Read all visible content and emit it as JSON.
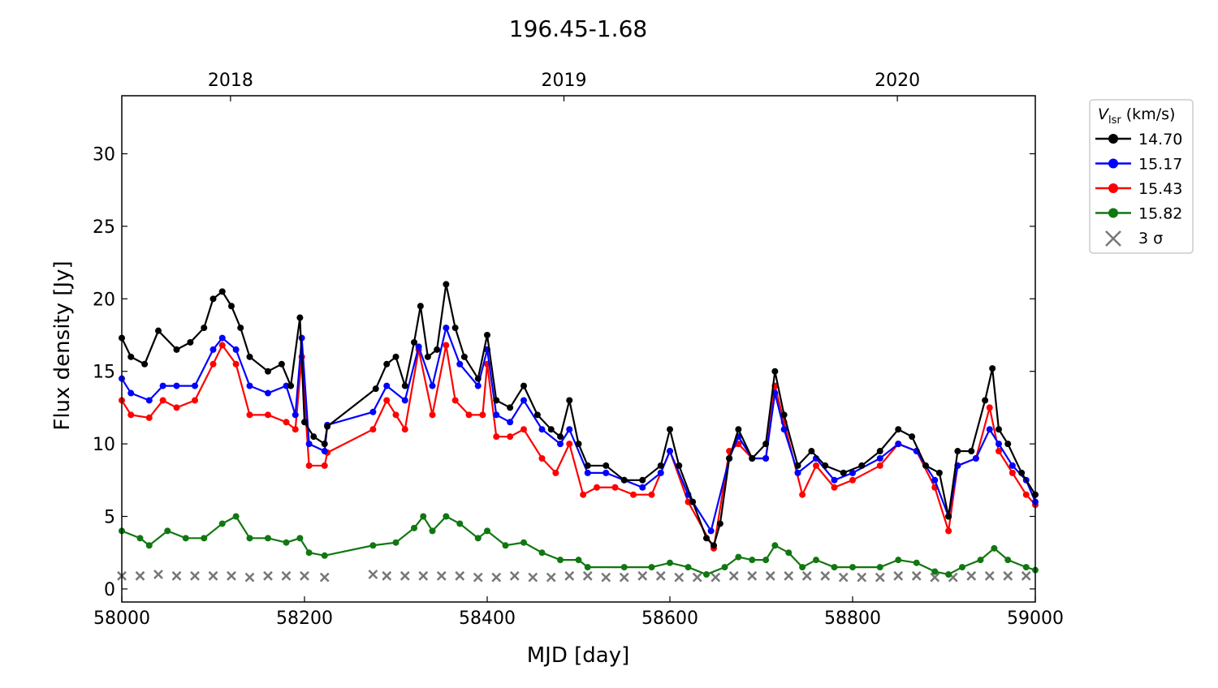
{
  "chart_data": {
    "type": "line",
    "title": "196.45-1.68",
    "xlabel": "MJD [day]",
    "ylabel": "Flux density [Jy]",
    "xlim": [
      58000,
      59000
    ],
    "ylim": [
      -0.9,
      34.0
    ],
    "xticks": [
      58000,
      58200,
      58400,
      58600,
      58800,
      59000
    ],
    "yticks": [
      0,
      5,
      10,
      15,
      20,
      25,
      30
    ],
    "top_axis": {
      "ticks": [
        {
          "label": "2018",
          "mjd": 58119
        },
        {
          "label": "2019",
          "mjd": 58484
        },
        {
          "label": "2020",
          "mjd": 58849
        }
      ]
    },
    "grid": false,
    "legend": {
      "title_main": "V",
      "title_sub": "lsr",
      "title_unit": " (km/s)",
      "placement": "outside-right-top"
    },
    "series": [
      {
        "name": "14.70",
        "color": "#000000",
        "points": [
          [
            58000,
            17.3
          ],
          [
            58010,
            16
          ],
          [
            58025,
            15.5
          ],
          [
            58040,
            17.8
          ],
          [
            58060,
            16.5
          ],
          [
            58075,
            17
          ],
          [
            58090,
            18
          ],
          [
            58100,
            20
          ],
          [
            58110,
            20.5
          ],
          [
            58120,
            19.5
          ],
          [
            58130,
            18
          ],
          [
            58140,
            16
          ],
          [
            58160,
            15
          ],
          [
            58175,
            15.5
          ],
          [
            58185,
            14
          ],
          [
            58195,
            18.7
          ],
          [
            58200,
            11.5
          ],
          [
            58210,
            10.5
          ],
          [
            58222,
            10
          ],
          [
            58225,
            11.2
          ],
          [
            58278,
            13.8
          ],
          [
            58290,
            15.5
          ],
          [
            58300,
            16
          ],
          [
            58310,
            14
          ],
          [
            58320,
            17
          ],
          [
            58327,
            19.5
          ],
          [
            58335,
            16
          ],
          [
            58345,
            16.5
          ],
          [
            58355,
            21
          ],
          [
            58365,
            18
          ],
          [
            58375,
            16
          ],
          [
            58390,
            14.5
          ],
          [
            58400,
            17.5
          ],
          [
            58410,
            13
          ],
          [
            58425,
            12.5
          ],
          [
            58440,
            14
          ],
          [
            58455,
            12
          ],
          [
            58470,
            11
          ],
          [
            58480,
            10.5
          ],
          [
            58490,
            13
          ],
          [
            58500,
            10
          ],
          [
            58510,
            8.5
          ],
          [
            58530,
            8.5
          ],
          [
            58550,
            7.5
          ],
          [
            58570,
            7.5
          ],
          [
            58590,
            8.5
          ],
          [
            58600,
            11
          ],
          [
            58610,
            8.5
          ],
          [
            58625,
            6
          ],
          [
            58640,
            3.5
          ],
          [
            58648,
            3
          ],
          [
            58655,
            4.5
          ],
          [
            58665,
            9
          ],
          [
            58675,
            11
          ],
          [
            58690,
            9
          ],
          [
            58705,
            10
          ],
          [
            58715,
            15
          ],
          [
            58725,
            12
          ],
          [
            58740,
            8.5
          ],
          [
            58755,
            9.5
          ],
          [
            58770,
            8.5
          ],
          [
            58790,
            8
          ],
          [
            58810,
            8.5
          ],
          [
            58830,
            9.5
          ],
          [
            58850,
            11
          ],
          [
            58865,
            10.5
          ],
          [
            58880,
            8.5
          ],
          [
            58895,
            8
          ],
          [
            58905,
            5
          ],
          [
            58915,
            9.5
          ],
          [
            58930,
            9.5
          ],
          [
            58945,
            13
          ],
          [
            58953,
            15.2
          ],
          [
            58960,
            11
          ],
          [
            58970,
            10
          ],
          [
            58985,
            8
          ],
          [
            59000,
            6.5
          ]
        ]
      },
      {
        "name": "15.17",
        "color": "#0000ff",
        "points": [
          [
            58000,
            14.5
          ],
          [
            58010,
            13.5
          ],
          [
            58030,
            13
          ],
          [
            58045,
            14
          ],
          [
            58060,
            14
          ],
          [
            58080,
            14
          ],
          [
            58100,
            16.5
          ],
          [
            58110,
            17.3
          ],
          [
            58125,
            16.5
          ],
          [
            58140,
            14
          ],
          [
            58160,
            13.5
          ],
          [
            58180,
            14
          ],
          [
            58190,
            12
          ],
          [
            58197,
            17.3
          ],
          [
            58205,
            10
          ],
          [
            58222,
            9.5
          ],
          [
            58225,
            11.3
          ],
          [
            58275,
            12.2
          ],
          [
            58290,
            14
          ],
          [
            58310,
            13
          ],
          [
            58325,
            16.7
          ],
          [
            58340,
            14
          ],
          [
            58355,
            18
          ],
          [
            58370,
            15.5
          ],
          [
            58390,
            14
          ],
          [
            58400,
            16.5
          ],
          [
            58410,
            12
          ],
          [
            58425,
            11.5
          ],
          [
            58440,
            13
          ],
          [
            58460,
            11
          ],
          [
            58480,
            10
          ],
          [
            58490,
            11
          ],
          [
            58510,
            8
          ],
          [
            58530,
            8
          ],
          [
            58550,
            7.5
          ],
          [
            58570,
            7
          ],
          [
            58590,
            8
          ],
          [
            58600,
            9.5
          ],
          [
            58620,
            6.5
          ],
          [
            58645,
            4
          ],
          [
            58665,
            9
          ],
          [
            58675,
            10.5
          ],
          [
            58690,
            9
          ],
          [
            58705,
            9
          ],
          [
            58715,
            13.5
          ],
          [
            58725,
            11
          ],
          [
            58740,
            8
          ],
          [
            58760,
            9
          ],
          [
            58780,
            7.5
          ],
          [
            58800,
            8
          ],
          [
            58830,
            9
          ],
          [
            58850,
            10
          ],
          [
            58870,
            9.5
          ],
          [
            58890,
            7.5
          ],
          [
            58905,
            5
          ],
          [
            58915,
            8.5
          ],
          [
            58935,
            9
          ],
          [
            58950,
            11
          ],
          [
            58960,
            10
          ],
          [
            58975,
            8.5
          ],
          [
            58990,
            7.5
          ],
          [
            59000,
            6
          ]
        ]
      },
      {
        "name": "15.43",
        "color": "#ff0000",
        "points": [
          [
            58000,
            13
          ],
          [
            58010,
            12
          ],
          [
            58030,
            11.8
          ],
          [
            58045,
            13
          ],
          [
            58060,
            12.5
          ],
          [
            58080,
            13
          ],
          [
            58100,
            15.5
          ],
          [
            58110,
            16.8
          ],
          [
            58125,
            15.5
          ],
          [
            58140,
            12
          ],
          [
            58160,
            12
          ],
          [
            58180,
            11.5
          ],
          [
            58190,
            11
          ],
          [
            58197,
            16
          ],
          [
            58205,
            8.5
          ],
          [
            58222,
            8.5
          ],
          [
            58225,
            9.4
          ],
          [
            58275,
            11
          ],
          [
            58290,
            13
          ],
          [
            58300,
            12
          ],
          [
            58310,
            11
          ],
          [
            58325,
            16.5
          ],
          [
            58340,
            12
          ],
          [
            58355,
            16.8
          ],
          [
            58365,
            13
          ],
          [
            58380,
            12
          ],
          [
            58395,
            12
          ],
          [
            58400,
            15.5
          ],
          [
            58410,
            10.5
          ],
          [
            58425,
            10.5
          ],
          [
            58440,
            11
          ],
          [
            58460,
            9
          ],
          [
            58475,
            8
          ],
          [
            58490,
            10
          ],
          [
            58505,
            6.5
          ],
          [
            58520,
            7
          ],
          [
            58540,
            7
          ],
          [
            58560,
            6.5
          ],
          [
            58580,
            6.5
          ],
          [
            58600,
            9.5
          ],
          [
            58620,
            6
          ],
          [
            58648,
            2.8
          ],
          [
            58665,
            9.5
          ],
          [
            58675,
            10
          ],
          [
            58690,
            9
          ],
          [
            58705,
            9
          ],
          [
            58715,
            14
          ],
          [
            58725,
            11.5
          ],
          [
            58745,
            6.5
          ],
          [
            58760,
            8.5
          ],
          [
            58780,
            7
          ],
          [
            58800,
            7.5
          ],
          [
            58830,
            8.5
          ],
          [
            58850,
            10
          ],
          [
            58870,
            9.5
          ],
          [
            58890,
            7
          ],
          [
            58905,
            4
          ],
          [
            58915,
            8.5
          ],
          [
            58935,
            9
          ],
          [
            58950,
            12.5
          ],
          [
            58960,
            9.5
          ],
          [
            58975,
            8
          ],
          [
            58990,
            6.5
          ],
          [
            59000,
            5.8
          ]
        ]
      },
      {
        "name": "15.82",
        "color": "#117711",
        "points": [
          [
            58000,
            4
          ],
          [
            58020,
            3.5
          ],
          [
            58030,
            3
          ],
          [
            58050,
            4
          ],
          [
            58070,
            3.5
          ],
          [
            58090,
            3.5
          ],
          [
            58110,
            4.5
          ],
          [
            58125,
            5
          ],
          [
            58140,
            3.5
          ],
          [
            58160,
            3.5
          ],
          [
            58180,
            3.2
          ],
          [
            58195,
            3.5
          ],
          [
            58205,
            2.5
          ],
          [
            58222,
            2.3
          ],
          [
            58275,
            3
          ],
          [
            58300,
            3.2
          ],
          [
            58320,
            4.2
          ],
          [
            58330,
            5
          ],
          [
            58340,
            4
          ],
          [
            58355,
            5
          ],
          [
            58370,
            4.5
          ],
          [
            58390,
            3.5
          ],
          [
            58400,
            4
          ],
          [
            58420,
            3
          ],
          [
            58440,
            3.2
          ],
          [
            58460,
            2.5
          ],
          [
            58480,
            2
          ],
          [
            58500,
            2
          ],
          [
            58510,
            1.5
          ],
          [
            58550,
            1.5
          ],
          [
            58580,
            1.5
          ],
          [
            58600,
            1.8
          ],
          [
            58620,
            1.5
          ],
          [
            58640,
            1
          ],
          [
            58660,
            1.5
          ],
          [
            58675,
            2.2
          ],
          [
            58690,
            2
          ],
          [
            58705,
            2
          ],
          [
            58715,
            3
          ],
          [
            58730,
            2.5
          ],
          [
            58745,
            1.5
          ],
          [
            58760,
            2
          ],
          [
            58780,
            1.5
          ],
          [
            58800,
            1.5
          ],
          [
            58830,
            1.5
          ],
          [
            58850,
            2
          ],
          [
            58870,
            1.8
          ],
          [
            58890,
            1.2
          ],
          [
            58905,
            1
          ],
          [
            58920,
            1.5
          ],
          [
            58940,
            2
          ],
          [
            58955,
            2.8
          ],
          [
            58970,
            2
          ],
          [
            58990,
            1.5
          ],
          [
            59000,
            1.3
          ]
        ]
      }
    ],
    "sigma": {
      "name": "3 σ",
      "color": "#777777",
      "points": [
        [
          58000,
          0.9
        ],
        [
          58020,
          0.9
        ],
        [
          58040,
          1.0
        ],
        [
          58060,
          0.9
        ],
        [
          58080,
          0.9
        ],
        [
          58100,
          0.9
        ],
        [
          58120,
          0.9
        ],
        [
          58140,
          0.8
        ],
        [
          58160,
          0.9
        ],
        [
          58180,
          0.9
        ],
        [
          58200,
          0.9
        ],
        [
          58222,
          0.8
        ],
        [
          58275,
          1.0
        ],
        [
          58290,
          0.9
        ],
        [
          58310,
          0.9
        ],
        [
          58330,
          0.9
        ],
        [
          58350,
          0.9
        ],
        [
          58370,
          0.9
        ],
        [
          58390,
          0.8
        ],
        [
          58410,
          0.8
        ],
        [
          58430,
          0.9
        ],
        [
          58450,
          0.8
        ],
        [
          58470,
          0.8
        ],
        [
          58490,
          0.9
        ],
        [
          58510,
          0.9
        ],
        [
          58530,
          0.8
        ],
        [
          58550,
          0.8
        ],
        [
          58570,
          0.9
        ],
        [
          58590,
          0.9
        ],
        [
          58610,
          0.8
        ],
        [
          58630,
          0.8
        ],
        [
          58650,
          0.8
        ],
        [
          58670,
          0.9
        ],
        [
          58690,
          0.9
        ],
        [
          58710,
          0.9
        ],
        [
          58730,
          0.9
        ],
        [
          58750,
          0.9
        ],
        [
          58770,
          0.9
        ],
        [
          58790,
          0.8
        ],
        [
          58810,
          0.8
        ],
        [
          58830,
          0.8
        ],
        [
          58850,
          0.9
        ],
        [
          58870,
          0.9
        ],
        [
          58890,
          0.8
        ],
        [
          58910,
          0.8
        ],
        [
          58930,
          0.9
        ],
        [
          58950,
          0.9
        ],
        [
          58970,
          0.9
        ],
        [
          58990,
          0.9
        ]
      ]
    }
  }
}
